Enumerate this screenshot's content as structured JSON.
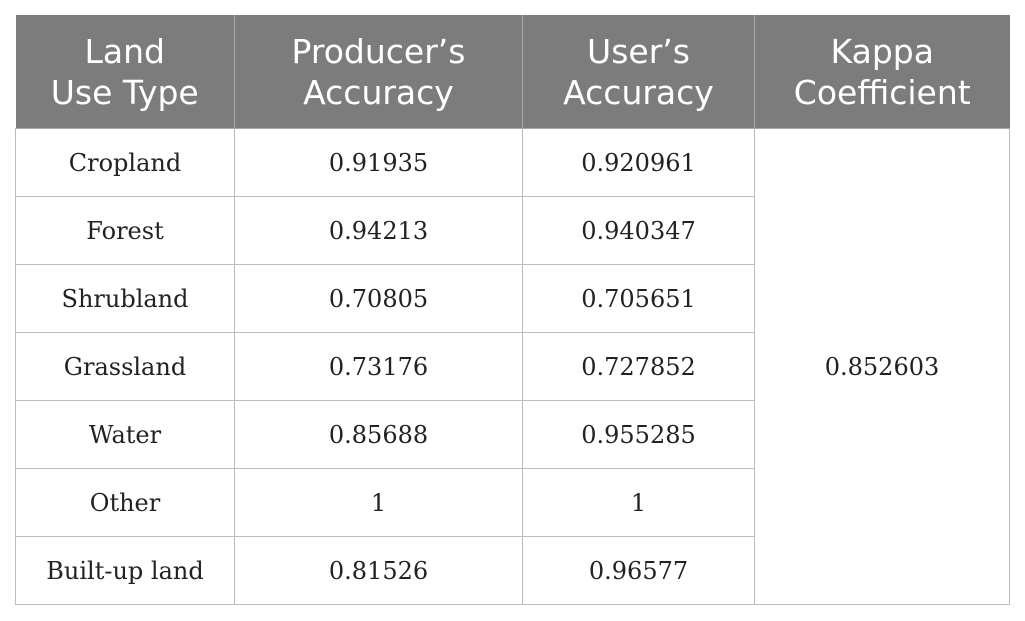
{
  "table": {
    "headers": [
      [
        "Land",
        "Use Type"
      ],
      [
        "Producer’s",
        "Accuracy"
      ],
      [
        "User’s",
        "Accuracy"
      ],
      [
        "Kappa",
        "Coefficient"
      ]
    ],
    "rows": [
      {
        "type": "Cropland",
        "producer": "0.91935",
        "user": "0.920961"
      },
      {
        "type": "Forest",
        "producer": "0.94213",
        "user": "0.940347"
      },
      {
        "type": "Shrubland",
        "producer": "0.70805",
        "user": "0.705651"
      },
      {
        "type": "Grassland",
        "producer": "0.73176",
        "user": "0.727852"
      },
      {
        "type": "Water",
        "producer": "0.85688",
        "user": "0.955285"
      },
      {
        "type": "Other",
        "producer": "1",
        "user": "1"
      },
      {
        "type": "Built-up land",
        "producer": "0.81526",
        "user": "0.96577"
      }
    ],
    "kappa": "0.852603"
  },
  "colors": {
    "header_bg": "#7b7c7b",
    "header_text": "#ffffff",
    "grid_line": "#bdbdbd"
  }
}
